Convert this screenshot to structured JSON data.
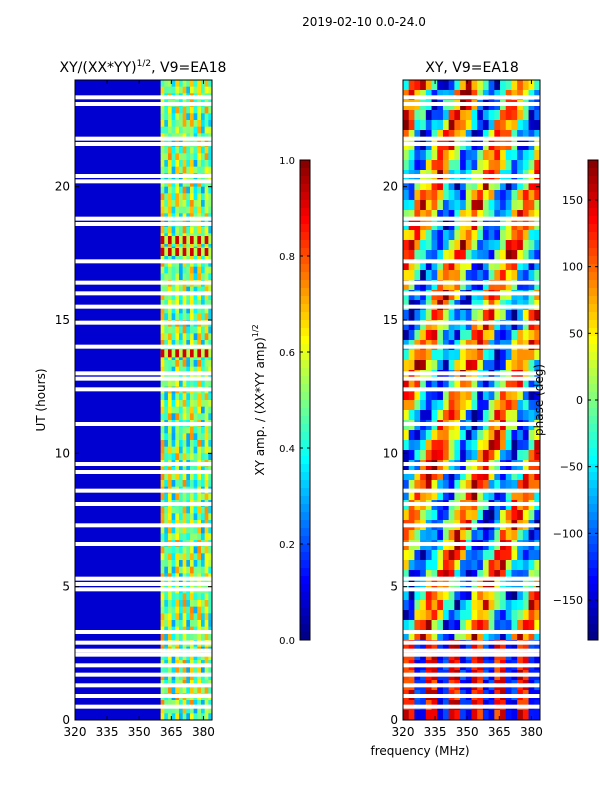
{
  "figure": {
    "suptitle": "2019-02-10 0.0-24.0",
    "shared_xlabel": "frequency (MHz)"
  },
  "chart_data": [
    {
      "type": "heatmap",
      "title_main": "XY/(XX*YY)",
      "title_exp": "1/2",
      "title_rest": ", V9=EA18",
      "ylabel": "UT (hours)",
      "xlim": [
        320,
        384
      ],
      "ylim": [
        0,
        24
      ],
      "xticks": [
        320,
        335,
        350,
        365,
        380
      ],
      "yticks": [
        0,
        5,
        10,
        15,
        20
      ],
      "colorbar": {
        "label_main": "XY amp. / (XX*YY amp)",
        "label_exp": "1/2",
        "range": [
          0.0,
          1.0
        ],
        "ticks": [
          "0.0",
          "0.2",
          "0.4",
          "0.6",
          "0.8",
          "1.0"
        ],
        "colormap": "jet"
      },
      "gaps_hours": [
        0.5,
        0.9,
        1.3,
        1.7,
        2.05,
        2.45,
        2.6,
        2.9,
        3.3,
        4.9,
        5.1,
        5.3,
        6.6,
        7.3,
        8.1,
        8.6,
        9.3,
        9.6,
        11.1,
        12.4,
        12.8,
        13.0,
        14.0,
        14.9,
        15.5,
        16.0,
        16.4,
        17.2,
        18.6,
        18.8,
        20.2,
        20.4,
        21.6,
        21.8,
        23.1,
        23.35
      ],
      "band_columns_MHz": [
        361,
        365,
        368,
        371,
        374,
        377,
        380
      ],
      "hot_rows_hours": [
        13.75,
        17.55,
        18.0
      ]
    },
    {
      "type": "heatmap",
      "title_main": "XY, V9=EA18",
      "ylabel": "",
      "xlim": [
        320,
        384
      ],
      "ylim": [
        0,
        24
      ],
      "xticks": [
        320,
        335,
        350,
        365,
        380
      ],
      "yticks": [
        0,
        5,
        10,
        15,
        20
      ],
      "colorbar": {
        "label_main": "phase (deg)",
        "range": [
          -180,
          180
        ],
        "ticks": [
          "150",
          "100",
          "50",
          "0",
          "−50",
          "−100",
          "−150"
        ],
        "colormap": "jet"
      },
      "gaps_hours": [
        0.5,
        0.9,
        1.3,
        1.7,
        2.05,
        2.45,
        2.6,
        2.9,
        3.3,
        4.9,
        5.1,
        5.3,
        6.6,
        7.3,
        8.1,
        8.6,
        9.3,
        9.6,
        11.1,
        12.4,
        12.8,
        13.0,
        14.0,
        14.9,
        15.5,
        16.0,
        16.4,
        17.2,
        18.6,
        18.8,
        20.2,
        20.4,
        21.6,
        21.8,
        23.1,
        23.35
      ],
      "stripe_columns_MHz": [
        324,
        330,
        336,
        342,
        348,
        354,
        360,
        366,
        372,
        378
      ]
    }
  ]
}
